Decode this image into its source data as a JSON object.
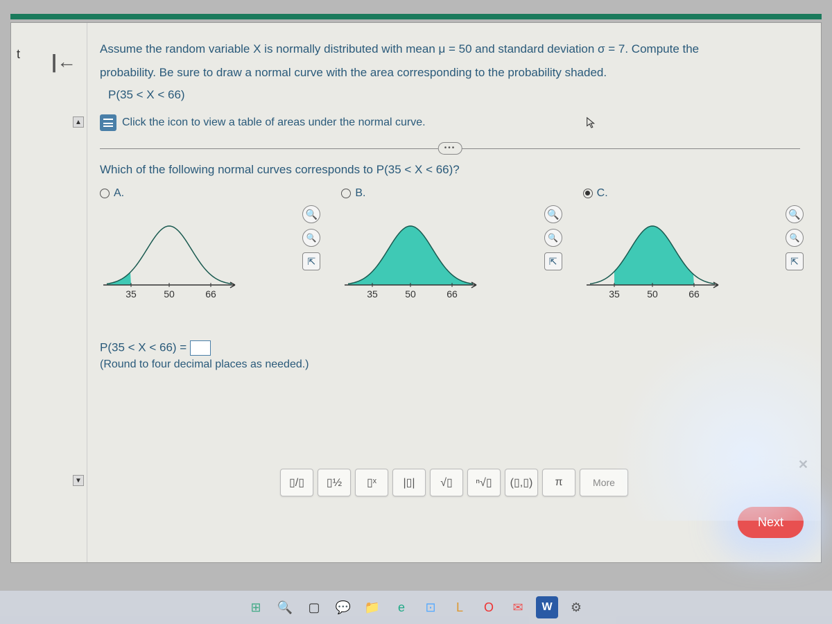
{
  "left": {
    "t": "t",
    "back": "|←"
  },
  "question": {
    "line1": "Assume the random variable X is normally distributed with mean μ = 50 and standard deviation σ = 7. Compute the",
    "line2": "probability. Be sure to draw a normal curve with the area corresponding to the probability shaded.",
    "expr": "P(35 < X < 66)",
    "table_link": "Click the icon to view a table of areas under the normal curve.",
    "which": "Which of the following normal curves corresponds to P(35 < X < 66)?"
  },
  "options": [
    {
      "label": "A.",
      "selected": false,
      "shade": "left_tail",
      "ticks": [
        "35",
        "50",
        "66"
      ]
    },
    {
      "label": "B.",
      "selected": false,
      "shade": "full",
      "ticks": [
        "35",
        "50",
        "66"
      ]
    },
    {
      "label": "C.",
      "selected": true,
      "shade": "middle",
      "ticks": [
        "35",
        "50",
        "66"
      ]
    }
  ],
  "curve": {
    "fill_color": "#3fc9b5",
    "stroke_color": "#1a5a50",
    "axis_color": "#333333",
    "bg": "#eaeae5"
  },
  "answer": {
    "prefix": "P(35 < X < 66) = ",
    "note": "(Round to four decimal places as needed.)"
  },
  "toolbar": {
    "btns": [
      "frac",
      "mixed",
      "exp",
      "abs",
      "sqrt",
      "nroot",
      "interval",
      "pi"
    ],
    "labels": {
      "frac": "▯/▯",
      "mixed": "▯½",
      "exp": "▯ˣ",
      "abs": "|▯|",
      "sqrt": "√▯",
      "nroot": "ⁿ√▯",
      "interval": "(▯,▯)",
      "pi": "π"
    },
    "more": "More"
  },
  "next": "Next",
  "taskbar": {
    "icons": [
      {
        "name": "start",
        "color": "#4a8",
        "glyph": "⊞"
      },
      {
        "name": "search",
        "color": "#555",
        "glyph": "🔍"
      },
      {
        "name": "task",
        "color": "#333",
        "glyph": "▢"
      },
      {
        "name": "chat",
        "color": "#e55",
        "glyph": "💬"
      },
      {
        "name": "explorer",
        "color": "#d9a",
        "glyph": "📁"
      },
      {
        "name": "edge",
        "color": "#2a8",
        "glyph": "e"
      },
      {
        "name": "store",
        "color": "#5af",
        "glyph": "⊡"
      },
      {
        "name": "lock",
        "color": "#d93",
        "glyph": "L"
      },
      {
        "name": "opera",
        "color": "#e33",
        "glyph": "O"
      },
      {
        "name": "mail",
        "color": "#e55",
        "glyph": "✉"
      },
      {
        "name": "word",
        "color": "#2a5aa5",
        "glyph": "W"
      },
      {
        "name": "settings",
        "color": "#555",
        "glyph": "⚙"
      }
    ]
  }
}
